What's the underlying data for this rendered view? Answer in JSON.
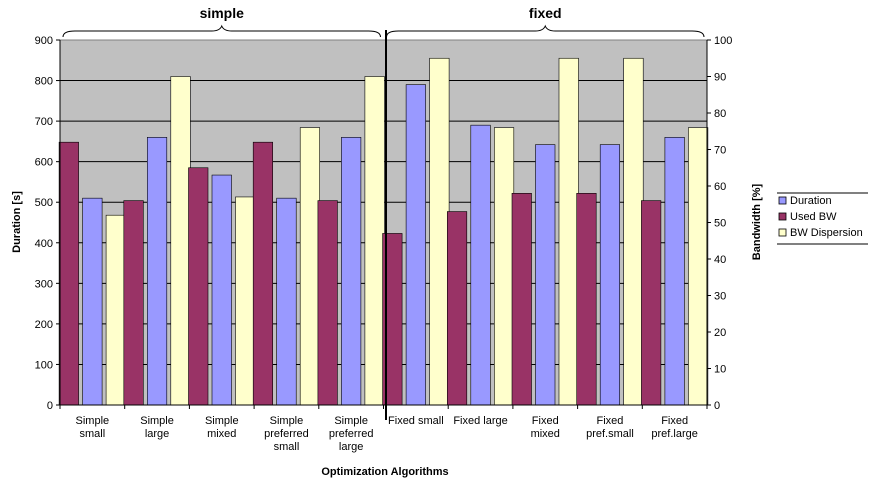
{
  "chart_data": {
    "type": "bar",
    "xlabel": "Optimization Algorithms",
    "ylabel": "Duration [s]",
    "y2label": "Bandwidth [%]",
    "ylim": [
      0,
      900
    ],
    "y2lim": [
      0,
      100
    ],
    "yticks": [
      0,
      100,
      200,
      300,
      400,
      500,
      600,
      700,
      800,
      900
    ],
    "y2ticks": [
      0,
      10,
      20,
      30,
      40,
      50,
      60,
      70,
      80,
      90,
      100
    ],
    "grid": true,
    "plot_background": "#c0c0c0",
    "legend_position": "right",
    "groups": [
      {
        "label": "simple",
        "start": 0,
        "end": 4
      },
      {
        "label": "fixed",
        "start": 5,
        "end": 9
      }
    ],
    "categories": [
      [
        "Simple",
        "small"
      ],
      [
        "Simple",
        "large"
      ],
      [
        "Simple",
        "mixed"
      ],
      [
        "Simple",
        "preferred",
        "small"
      ],
      [
        "Simple",
        "preferred",
        "large"
      ],
      [
        "Fixed small"
      ],
      [
        "Fixed large"
      ],
      [
        "Fixed",
        "mixed"
      ],
      [
        "Fixed",
        "pref.small"
      ],
      [
        "Fixed",
        "pref.large"
      ]
    ],
    "series": [
      {
        "name": "Used BW",
        "axis": "right",
        "color": "#993366",
        "values": [
          72,
          56,
          65,
          72,
          56,
          47,
          53,
          58,
          58,
          56
        ]
      },
      {
        "name": "Duration",
        "axis": "left",
        "color": "#9999ff",
        "values": [
          510,
          660,
          567,
          510,
          660,
          790,
          690,
          642,
          642,
          660
        ]
      },
      {
        "name": "BW Dispersion",
        "axis": "right",
        "color": "#ffffcc",
        "values": [
          52,
          90,
          57,
          76,
          90,
          95,
          76,
          95,
          95,
          76
        ]
      }
    ],
    "legend_order": [
      "Duration",
      "Used BW",
      "BW Dispersion"
    ]
  }
}
